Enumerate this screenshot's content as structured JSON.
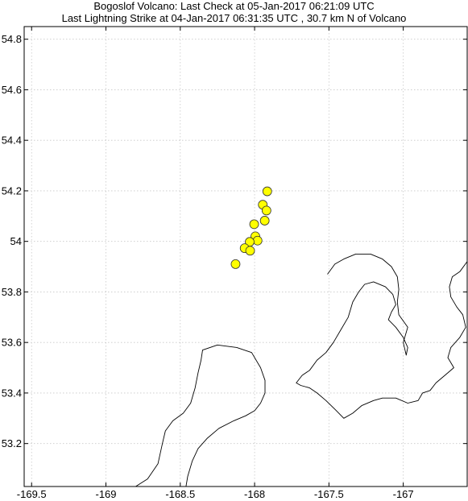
{
  "title": {
    "line1": "Bogoslof Volcano: Last Check at 05-Jan-2017 06:21:09 UTC",
    "line2": "Last Lightning Strike at 04-Jan-2017 06:31:35 UTC , 30.7 km N of Volcano"
  },
  "colors": {
    "strike_fill": "#ffff00",
    "strike_stroke": "#333333",
    "coast": "#000000",
    "grid": "#c8c8c8"
  },
  "chart_data": {
    "type": "scatter",
    "xlim": [
      -169.55,
      -166.57
    ],
    "ylim": [
      53.03,
      54.85
    ],
    "grid": true,
    "x_ticks": [
      {
        "value": -169.5,
        "label": "-169.5"
      },
      {
        "value": -169,
        "label": "-169"
      },
      {
        "value": -168.5,
        "label": "-168.5"
      },
      {
        "value": -168,
        "label": "-168"
      },
      {
        "value": -167.5,
        "label": "-167.5"
      },
      {
        "value": -167,
        "label": "-167"
      }
    ],
    "y_ticks": [
      {
        "value": 53.2,
        "label": "53.2"
      },
      {
        "value": 53.4,
        "label": "53.4"
      },
      {
        "value": 53.6,
        "label": "53.6"
      },
      {
        "value": 53.8,
        "label": "53.8"
      },
      {
        "value": 54,
        "label": "54"
      },
      {
        "value": 54.2,
        "label": "54.2"
      },
      {
        "value": 54.4,
        "label": "54.4"
      },
      {
        "value": 54.6,
        "label": "54.6"
      },
      {
        "value": 54.8,
        "label": "54.8"
      }
    ],
    "strikes": [
      {
        "lon": -167.915,
        "lat": 54.198
      },
      {
        "lon": -167.945,
        "lat": 54.145
      },
      {
        "lon": -167.92,
        "lat": 54.122
      },
      {
        "lon": -167.932,
        "lat": 54.082
      },
      {
        "lon": -168.003,
        "lat": 54.068
      },
      {
        "lon": -167.995,
        "lat": 54.02
      },
      {
        "lon": -167.98,
        "lat": 54.003
      },
      {
        "lon": -168.033,
        "lat": 53.998
      },
      {
        "lon": -168.067,
        "lat": 53.973
      },
      {
        "lon": -168.03,
        "lat": 53.963
      },
      {
        "lon": -168.128,
        "lat": 53.91
      }
    ],
    "coastlines": [
      {
        "name": "Unalaska Island",
        "closed": true,
        "points": [
          [
            -168.88,
            53.0
          ],
          [
            -168.8,
            53.03
          ],
          [
            -168.72,
            53.06
          ],
          [
            -168.65,
            53.12
          ],
          [
            -168.62,
            53.2
          ],
          [
            -168.6,
            53.25
          ],
          [
            -168.55,
            53.29
          ],
          [
            -168.48,
            53.32
          ],
          [
            -168.43,
            53.36
          ],
          [
            -168.4,
            53.42
          ],
          [
            -168.38,
            53.48
          ],
          [
            -168.36,
            53.53
          ],
          [
            -168.35,
            53.57
          ],
          [
            -168.25,
            53.59
          ],
          [
            -168.12,
            53.58
          ],
          [
            -168.02,
            53.56
          ],
          [
            -167.96,
            53.5
          ],
          [
            -167.93,
            53.45
          ],
          [
            -167.93,
            53.4
          ],
          [
            -167.96,
            53.36
          ],
          [
            -168.0,
            53.33
          ],
          [
            -168.06,
            53.31
          ],
          [
            -168.14,
            53.29
          ],
          [
            -168.24,
            53.26
          ],
          [
            -168.32,
            53.22
          ],
          [
            -168.38,
            53.18
          ],
          [
            -168.42,
            53.13
          ],
          [
            -168.45,
            53.07
          ],
          [
            -168.47,
            53.0
          ]
        ]
      },
      {
        "name": "Unimak Island",
        "closed": false,
        "points": [
          [
            -166.57,
            53.92
          ],
          [
            -166.62,
            53.88
          ],
          [
            -166.67,
            53.86
          ],
          [
            -166.69,
            53.82
          ],
          [
            -166.68,
            53.78
          ],
          [
            -166.64,
            53.74
          ],
          [
            -166.6,
            53.71
          ],
          [
            -166.58,
            53.66
          ],
          [
            -166.62,
            53.62
          ],
          [
            -166.68,
            53.58
          ],
          [
            -166.7,
            53.54
          ],
          [
            -166.66,
            53.5
          ],
          [
            -166.72,
            53.47
          ],
          [
            -166.78,
            53.44
          ],
          [
            -166.82,
            53.41
          ],
          [
            -166.87,
            53.4
          ],
          [
            -166.9,
            53.37
          ],
          [
            -166.97,
            53.36
          ],
          [
            -167.05,
            53.38
          ],
          [
            -167.14,
            53.38
          ],
          [
            -167.2,
            53.37
          ],
          [
            -167.28,
            53.35
          ],
          [
            -167.34,
            53.32
          ],
          [
            -167.4,
            53.3
          ],
          [
            -167.45,
            53.33
          ],
          [
            -167.52,
            53.37
          ],
          [
            -167.58,
            53.4
          ],
          [
            -167.63,
            53.42
          ],
          [
            -167.69,
            53.43
          ],
          [
            -167.72,
            53.44
          ],
          [
            -167.68,
            53.47
          ],
          [
            -167.63,
            53.49
          ],
          [
            -167.58,
            53.53
          ],
          [
            -167.52,
            53.56
          ],
          [
            -167.47,
            53.6
          ],
          [
            -167.42,
            53.65
          ],
          [
            -167.37,
            53.7
          ],
          [
            -167.34,
            53.76
          ],
          [
            -167.3,
            53.8
          ],
          [
            -167.26,
            53.83
          ],
          [
            -167.2,
            53.84
          ],
          [
            -167.12,
            53.82
          ],
          [
            -167.07,
            53.79
          ],
          [
            -167.05,
            53.75
          ],
          [
            -167.08,
            53.72
          ],
          [
            -167.1,
            53.69
          ],
          [
            -167.05,
            53.66
          ],
          [
            -167.0,
            53.62
          ],
          [
            -166.97,
            53.58
          ],
          [
            -166.98,
            53.55
          ],
          [
            -167.0,
            53.6
          ],
          [
            -166.97,
            53.66
          ],
          [
            -167.03,
            53.71
          ],
          [
            -167.04,
            53.76
          ],
          [
            -167.03,
            53.81
          ],
          [
            -167.04,
            53.86
          ],
          [
            -167.08,
            53.9
          ],
          [
            -167.14,
            53.93
          ],
          [
            -167.22,
            53.95
          ],
          [
            -167.32,
            53.95
          ],
          [
            -167.4,
            53.93
          ],
          [
            -167.46,
            53.91
          ],
          [
            -167.51,
            53.87
          ]
        ]
      }
    ]
  }
}
